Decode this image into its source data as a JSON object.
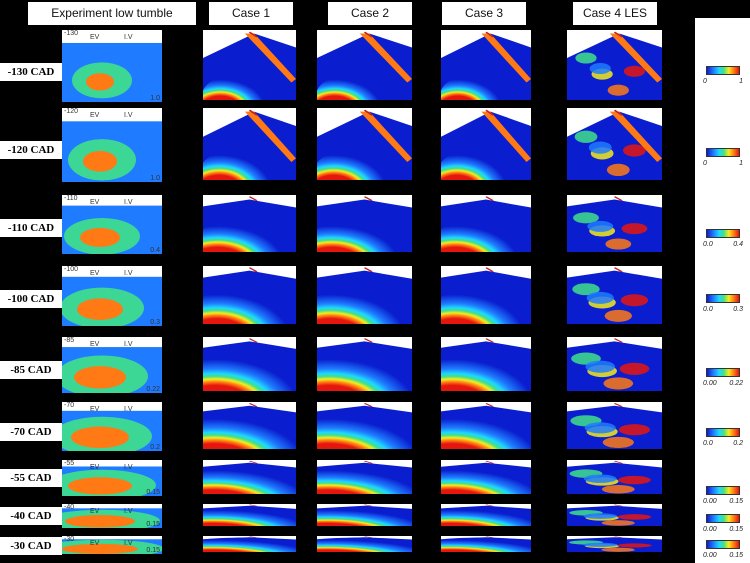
{
  "headers": {
    "experiment": "Experiment low tumble",
    "case1": "Case 1",
    "case2": "Case 2",
    "case3": "Case 3",
    "case4": "Case 4 LES"
  },
  "rows": [
    {
      "label": "-130 CAD",
      "angle": "-130",
      "cb_min": "0",
      "cb_max": "1",
      "exp_max": "1.0"
    },
    {
      "label": "-120 CAD",
      "angle": "-120",
      "cb_min": "0",
      "cb_max": "1",
      "exp_max": "1.0"
    },
    {
      "label": "-110 CAD",
      "angle": "-110",
      "cb_min": "0.0",
      "cb_max": "0.4",
      "exp_max": "0.4"
    },
    {
      "label": "-100 CAD",
      "angle": "-100",
      "cb_min": "0.0",
      "cb_max": "0.3",
      "exp_max": "0.3"
    },
    {
      "label": "-85 CAD",
      "angle": "-85",
      "cb_min": "0.00",
      "cb_max": "0.22",
      "exp_max": "0.22"
    },
    {
      "label": "-70 CAD",
      "angle": "-70",
      "cb_min": "0.0",
      "cb_max": "0.2",
      "exp_max": "0.2"
    },
    {
      "label": "-55 CAD",
      "angle": "-55",
      "cb_min": "0.00",
      "cb_max": "0.15",
      "exp_max": "0.15"
    },
    {
      "label": "-40 CAD",
      "angle": "-40",
      "cb_min": "0.00",
      "cb_max": "0.15",
      "exp_max": "0.15"
    },
    {
      "label": "-30 CAD",
      "angle": "-30",
      "cb_min": "0.00",
      "cb_max": "0.15",
      "exp_max": "0.15"
    }
  ],
  "valve_labels": {
    "ev": "EV",
    "iv": "I.V"
  },
  "colormap": [
    "#0a1ecf",
    "#1f7bff",
    "#1fd8ff",
    "#3fe08a",
    "#f5ec1c",
    "#ff7a14",
    "#e5160e"
  ]
}
